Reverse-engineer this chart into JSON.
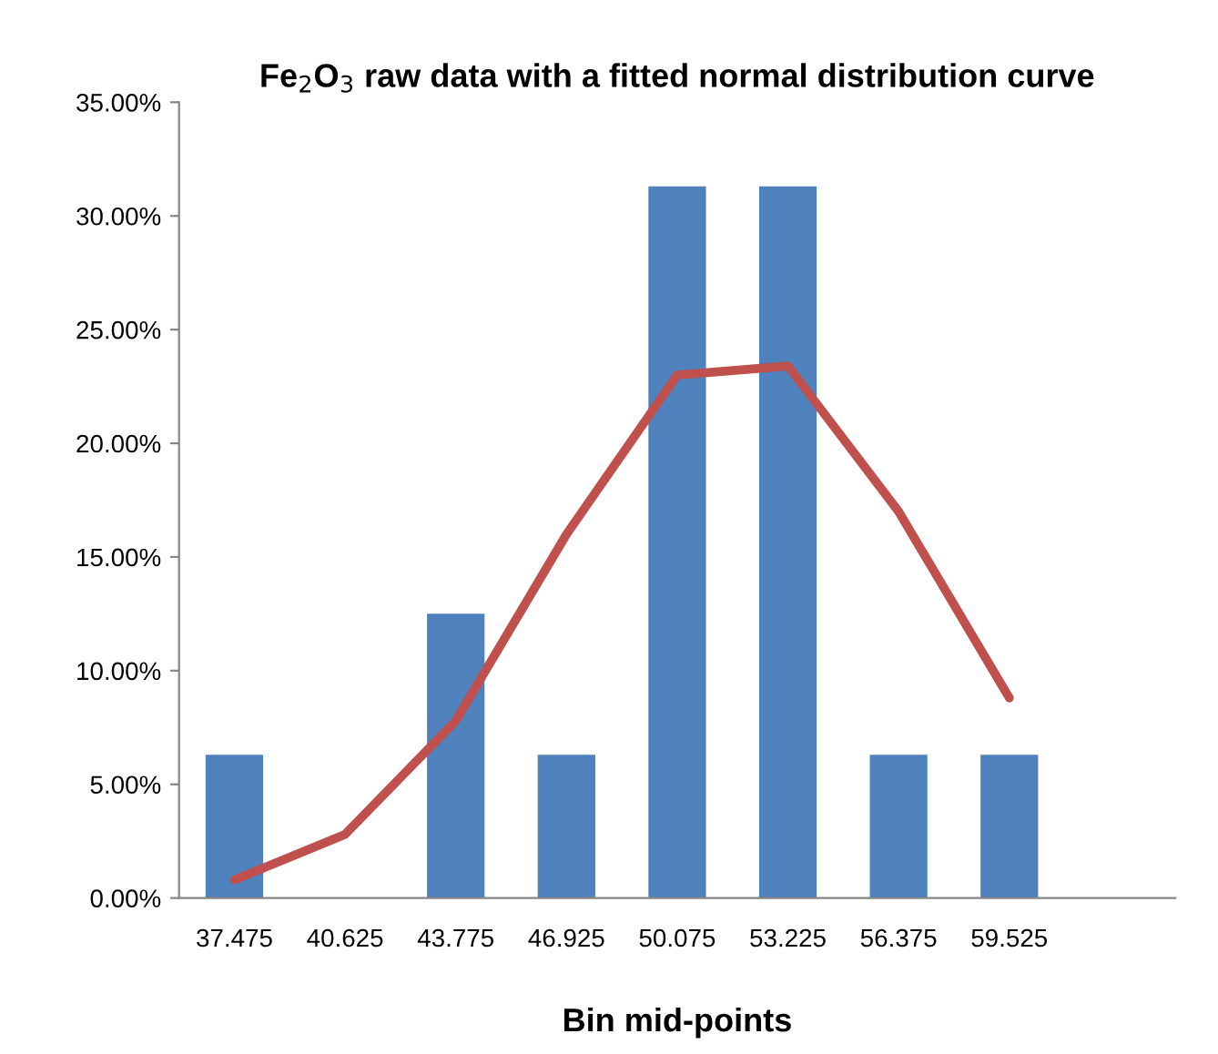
{
  "chart_data": {
    "type": "bar",
    "title": "Fe$_{2}$O$_{3}$ raw data with a fitted normal distribution curve",
    "xlabel": "Bin mid-points",
    "categories": [
      "37.475",
      "40.625",
      "43.775",
      "46.925",
      "50.075",
      "53.225",
      "56.375",
      "59.525",
      null
    ],
    "series": [
      {
        "color": "#4f81bd",
        "values": [
          6.3,
          0,
          12.5,
          6.3,
          31.3,
          31.3,
          6.3,
          6.3,
          null
        ]
      },
      {
        "type": "line",
        "color": "#c0504d",
        "values": [
          0.8,
          2.8,
          7.8,
          16.0,
          23.0,
          23.4,
          17.0,
          8.8,
          null
        ]
      }
    ],
    "ylim": [
      0,
      35
    ],
    "yticks": [
      {
        "value": 0,
        "label": "0.00%"
      },
      {
        "value": 5,
        "label": "5.00%"
      },
      {
        "value": 10,
        "label": "10.00%"
      },
      {
        "value": 15,
        "label": "15.00%"
      },
      {
        "value": 20,
        "label": "20.00%"
      },
      {
        "value": 25,
        "label": "25.00%"
      },
      {
        "value": 30,
        "label": "30.00%"
      },
      {
        "value": 35,
        "label": "35.00%"
      }
    ],
    "grid": false,
    "legend": false
  }
}
